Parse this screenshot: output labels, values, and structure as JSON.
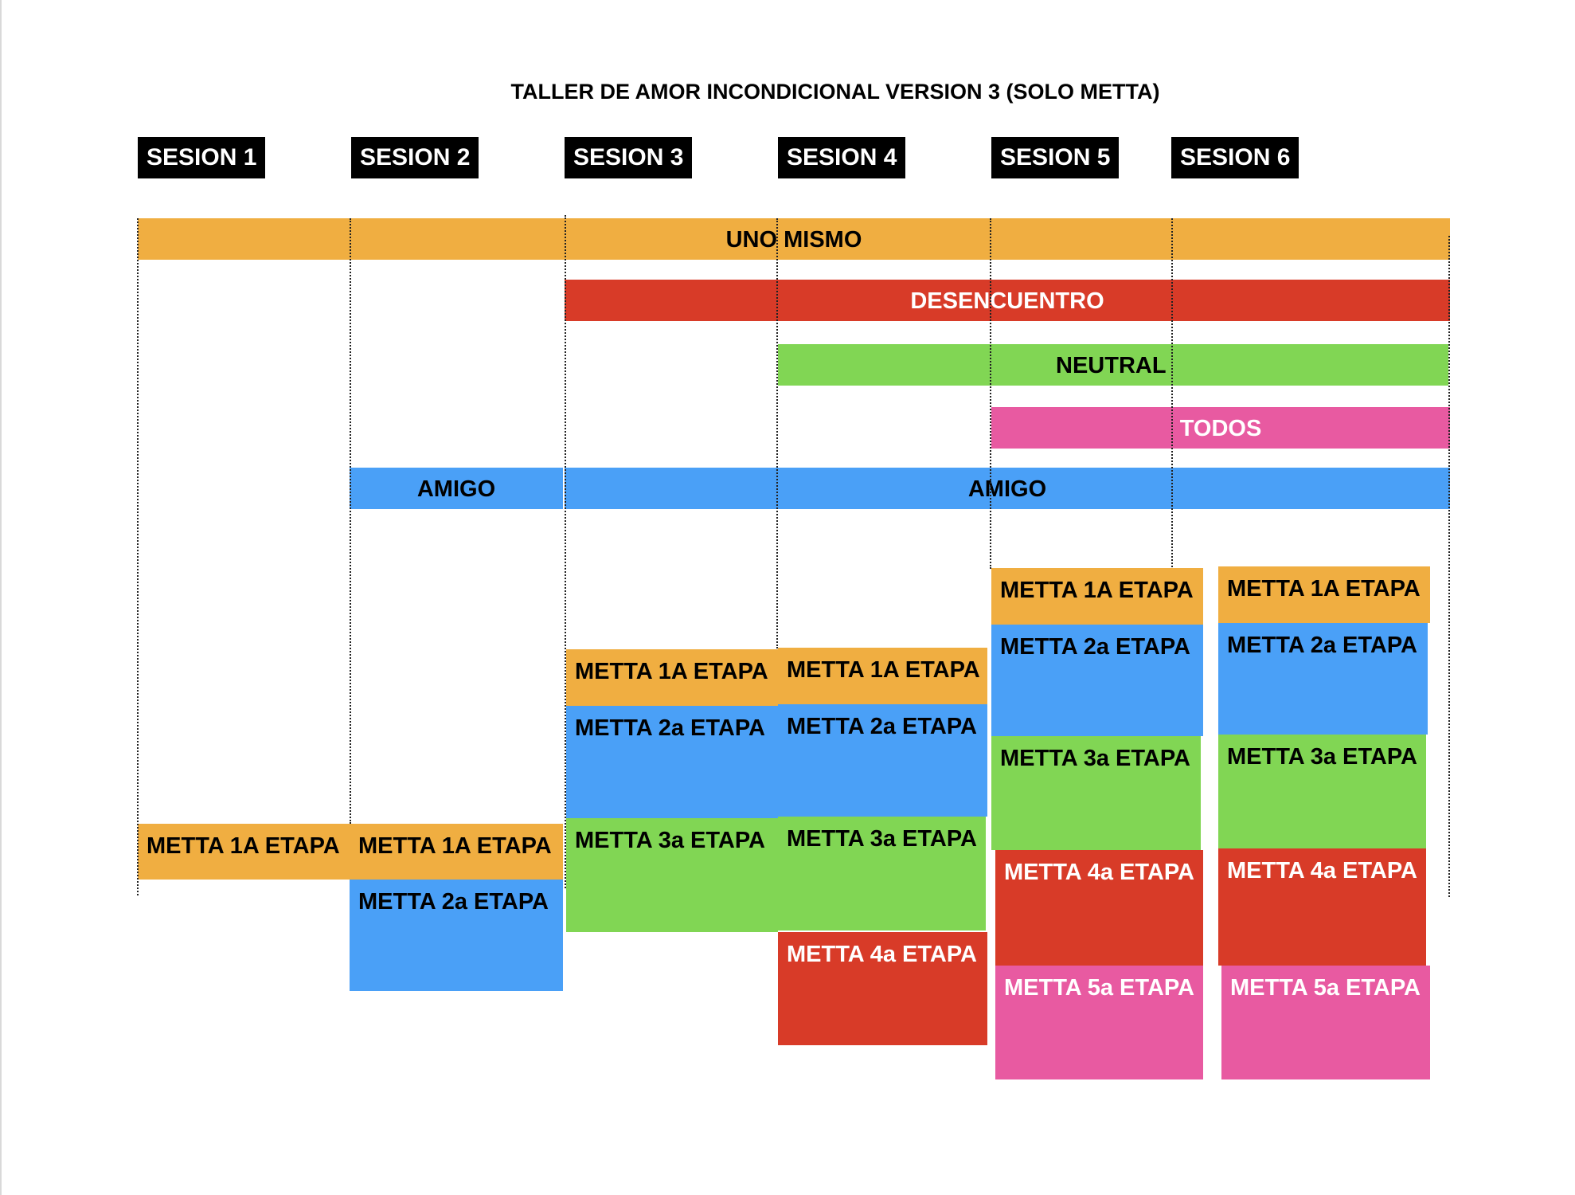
{
  "title": "TALLER DE AMOR INCONDICIONAL VERSION 3 (SOLO METTA)",
  "colors": {
    "uno_mismo": "#f0ae41",
    "desencuentro": "#d83b28",
    "neutral": "#81d654",
    "todos": "#e85aa1",
    "amigo": "#4aa0f7"
  },
  "sessions": [
    "SESION 1",
    "SESION 2",
    "SESION 3",
    "SESION 4",
    "SESION 5",
    "SESION 6"
  ],
  "bands": {
    "uno_mismo": "UNO MISMO",
    "desencuentro": "DESENCUENTRO",
    "neutral": "NEUTRAL",
    "todos": "TODOS",
    "amigo_s2": "AMIGO",
    "amigo_rest": "AMIGO"
  },
  "stages": {
    "s1": [
      "METTA 1A ETAPA"
    ],
    "s2": [
      "METTA 1A ETAPA",
      "METTA 2a ETAPA"
    ],
    "s3": [
      "METTA 1A ETAPA",
      "METTA 2a ETAPA",
      "METTA 3a ETAPA"
    ],
    "s4": [
      "METTA 1A ETAPA",
      "METTA 2a ETAPA",
      "METTA 3a ETAPA",
      "METTA 4a ETAPA"
    ],
    "s5": [
      "METTA 1A ETAPA",
      "METTA 2a ETAPA",
      "METTA 3a ETAPA",
      "METTA 4a ETAPA",
      "METTA 5a ETAPA"
    ],
    "s6": [
      "METTA 1A ETAPA",
      "METTA 2a ETAPA",
      "METTA 3a ETAPA",
      "METTA 4a ETAPA",
      "METTA 5a ETAPA"
    ]
  }
}
